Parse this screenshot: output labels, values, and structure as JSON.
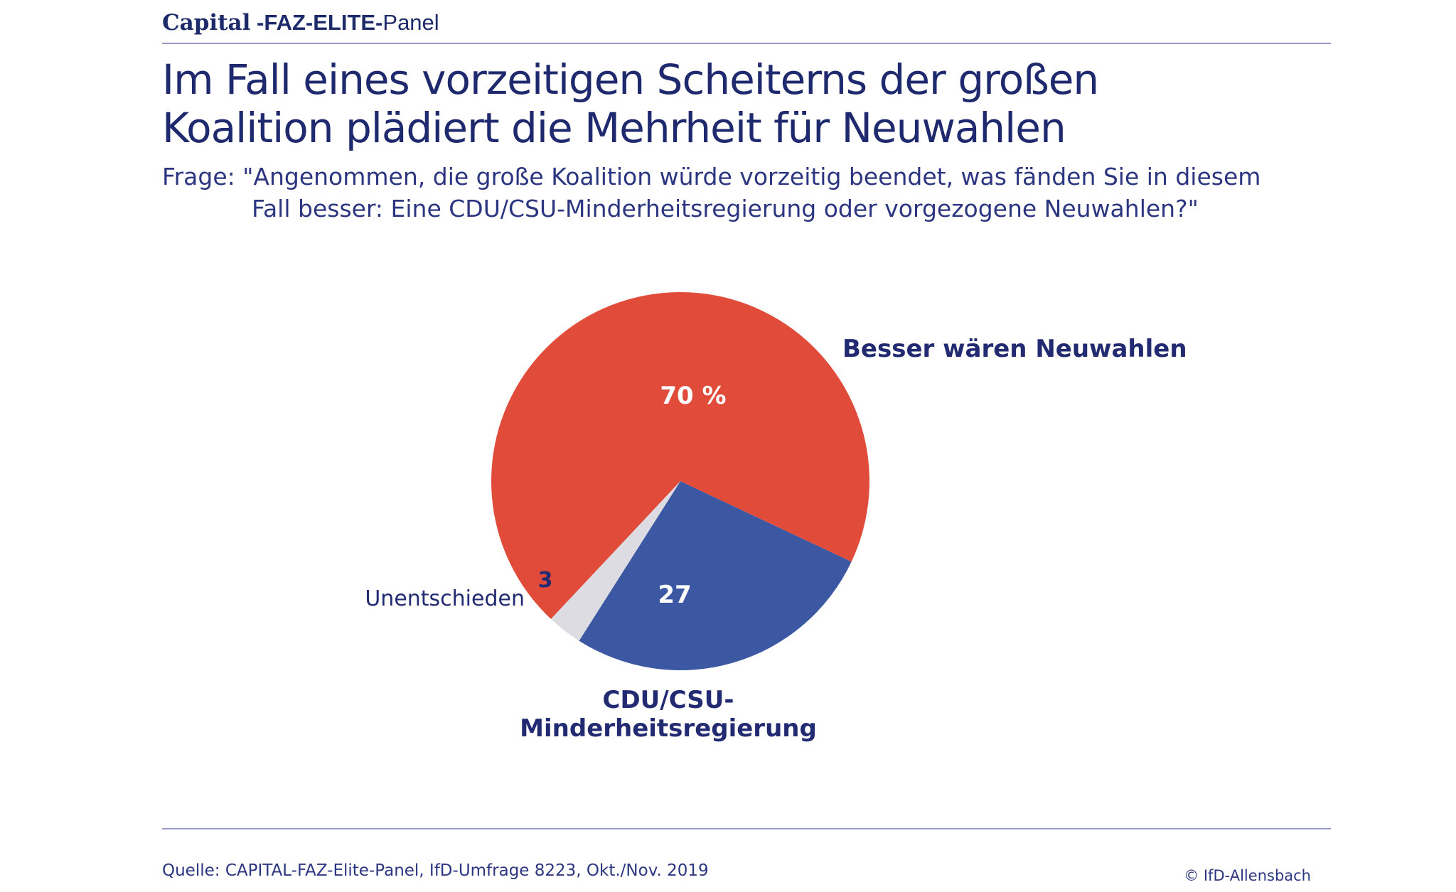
{
  "brand": {
    "capital": "Capital",
    "faz_elite": " -FAZ-ELITE-",
    "panel": "Panel"
  },
  "title_line1": "Im Fall eines vorzeitigen Scheiterns der großen",
  "title_line2": "Koalition plädiert die Mehrheit für Neuwahlen",
  "question_line1": "Frage: \"Angenommen, die große Koalition würde vorzeitig beendet, was fänden Sie in diesem",
  "question_line2": "Fall besser: Eine CDU/CSU-Minderheitsregierung oder vorgezogene Neuwahlen?\"",
  "source": "Quelle: CAPITAL-FAZ-Elite-Panel, IfD-Umfrage 8223, Okt./Nov. 2019",
  "copyright": "© IfD-Allensbach",
  "colors": {
    "text": "#222a72",
    "neuwahlen": "#e04b3a",
    "minderheit": "#3c58a3",
    "unentschieden": "#dcdce2",
    "rule": "#9b9bc9"
  },
  "chart_data": {
    "type": "pie",
    "title": "Im Fall eines vorzeitigen Scheiterns der großen Koalition plädiert die Mehrheit für Neuwahlen",
    "unit": "%",
    "slices": [
      {
        "name": "Besser wären Neuwahlen",
        "value": 70,
        "value_label": "70 %",
        "color": "#e04b3a"
      },
      {
        "name_lines": [
          "CDU/CSU-",
          "Minderheitsregierung"
        ],
        "value": 27,
        "value_label": "27",
        "color": "#3c58a3"
      },
      {
        "name": "Unentschieden",
        "value": 3,
        "value_label": "3",
        "color": "#dcdce2"
      }
    ]
  }
}
